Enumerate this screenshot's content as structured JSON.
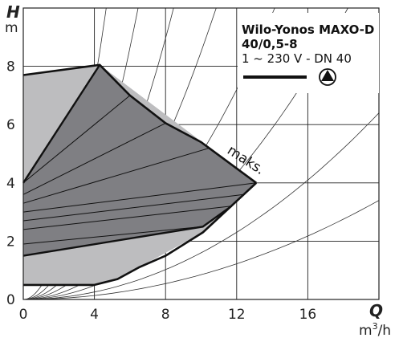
{
  "chart_data": {
    "type": "area",
    "title": "Wilo-Yonos MAXO-D",
    "subtitle": "40/0,5-8",
    "spec": "1 ~ 230 V - DN 40",
    "xlabel": "Q",
    "xunit": "m³/h",
    "xunit_base": "m",
    "xunit_exp": "3",
    "xunit_tail": "/h",
    "ylabel": "H",
    "yunit": "m",
    "xlim": [
      0,
      20
    ],
    "ylim": [
      0,
      10
    ],
    "xticks": [
      "0",
      "4",
      "8",
      "12",
      "16"
    ],
    "yticks": [
      "0",
      "2",
      "4",
      "6",
      "8"
    ],
    "xtick_values": [
      0,
      4,
      8,
      12,
      16
    ],
    "ytick_values": [
      0,
      2,
      4,
      6,
      8
    ],
    "grid": true,
    "legend_position": "top-right",
    "annotation": "maks.",
    "light_region": [
      [
        0,
        7.7
      ],
      [
        4.3,
        8.05
      ],
      [
        13.1,
        4.0
      ],
      [
        10.1,
        2.3
      ],
      [
        6.5,
        1.1
      ],
      [
        5.3,
        0.7
      ],
      [
        4.0,
        0.5
      ],
      [
        0,
        0.5
      ]
    ],
    "dark_region": [
      [
        0,
        4.0
      ],
      [
        4.3,
        8.05
      ],
      [
        6,
        7.0
      ],
      [
        8,
        6.05
      ],
      [
        10,
        5.4
      ],
      [
        13.1,
        4.0
      ],
      [
        11.7,
        3.2
      ],
      [
        10.1,
        2.5
      ],
      [
        0,
        1.5
      ]
    ],
    "max_curve": [
      [
        0,
        7.7
      ],
      [
        4.3,
        8.05
      ],
      [
        6,
        7.0
      ],
      [
        8,
        6.05
      ],
      [
        10,
        5.4
      ],
      [
        13.1,
        4.0
      ]
    ],
    "min_curve": [
      [
        0,
        0.5
      ],
      [
        4.0,
        0.5
      ],
      [
        5.3,
        0.7
      ],
      [
        6.5,
        1.1
      ],
      [
        8,
        1.5
      ],
      [
        10.1,
        2.3
      ],
      [
        13.1,
        4.0
      ]
    ],
    "fan_lines": [
      [
        [
          0,
          4.0
        ],
        [
          6.0,
          7.0
        ]
      ],
      [
        [
          0,
          3.6
        ],
        [
          8.0,
          6.05
        ]
      ],
      [
        [
          0,
          3.3
        ],
        [
          10.5,
          5.2
        ]
      ],
      [
        [
          0,
          3.0
        ],
        [
          13.1,
          4.0
        ]
      ],
      [
        [
          0,
          2.7
        ],
        [
          12.4,
          3.6
        ]
      ],
      [
        [
          0,
          2.4
        ],
        [
          11.7,
          3.2
        ]
      ],
      [
        [
          0,
          1.9
        ],
        [
          10.1,
          2.5
        ]
      ]
    ],
    "system_curves_k": [
      0.46,
      0.24,
      0.14,
      0.085,
      0.05,
      0.03,
      0.016,
      0.0085
    ],
    "colors": {
      "light": "#bdbdbf",
      "dark": "#7f7f83",
      "line": "#111111",
      "grid": "#222222"
    }
  }
}
